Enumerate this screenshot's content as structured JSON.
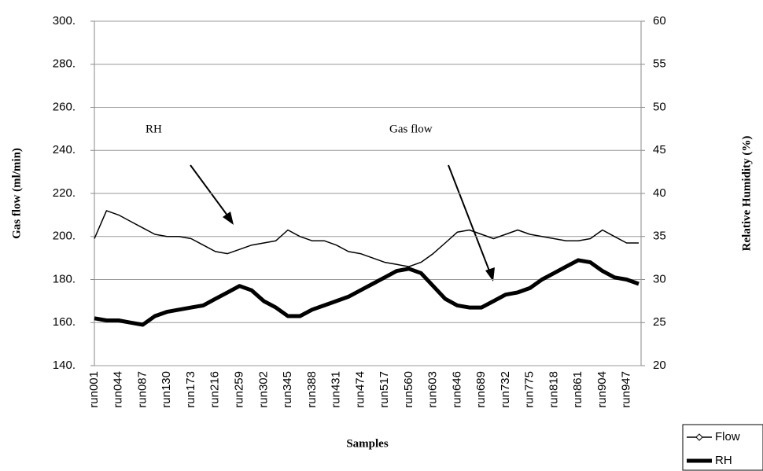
{
  "chart_data": {
    "type": "line",
    "y_label": "Gas flow (ml/min)",
    "y2_label": "Relative Humidity (%)",
    "x_label": "Samples",
    "categories": [
      "run001",
      null,
      "run044",
      null,
      "run087",
      null,
      "run130",
      null,
      "run173",
      null,
      "run216",
      null,
      "run259",
      null,
      "run302",
      null,
      "run345",
      null,
      "run388",
      null,
      "run431",
      null,
      "run474",
      null,
      "run517",
      null,
      "run560",
      null,
      "run603",
      null,
      "run646",
      null,
      "run689",
      null,
      "run732",
      null,
      "run775",
      null,
      "run818",
      null,
      "run861",
      null,
      "run904",
      null,
      "run947",
      null
    ],
    "series": [
      {
        "name": "Flow",
        "color": "#000000",
        "axis": "y",
        "values": [
          199,
          212,
          210,
          207,
          204,
          201,
          200,
          200,
          199,
          196,
          193,
          192,
          194,
          196,
          197,
          198,
          203,
          200,
          198,
          198,
          196,
          193,
          192,
          190,
          188,
          187,
          186,
          188,
          192,
          197,
          202,
          203,
          201,
          199,
          201,
          203,
          201,
          200,
          199,
          198,
          198,
          199,
          203,
          200,
          197,
          197
        ]
      },
      {
        "name": "RH",
        "color": "#000000",
        "axis": "y2",
        "values": [
          25.5,
          25.25,
          25.25,
          25,
          24.75,
          25.75,
          26.25,
          26.5,
          26.75,
          27,
          27.75,
          28.5,
          29.25,
          28.75,
          27.5,
          26.75,
          25.75,
          25.75,
          26.5,
          27,
          27.5,
          28,
          28.75,
          29.5,
          30.25,
          31,
          31.25,
          30.75,
          29.25,
          27.75,
          27,
          26.75,
          26.75,
          27.5,
          28.25,
          28.5,
          29,
          30,
          30.75,
          31.5,
          32.25,
          32,
          31,
          30.25,
          30,
          29.5
        ]
      }
    ],
    "ylim": [
      140,
      300
    ],
    "yticks": [
      {
        "value": 140,
        "label": "140."
      },
      {
        "value": 160,
        "label": "160."
      },
      {
        "value": 180,
        "label": "180."
      },
      {
        "value": 200,
        "label": "200."
      },
      {
        "value": 220,
        "label": "220."
      },
      {
        "value": 240,
        "label": "240."
      },
      {
        "value": 260,
        "label": "260."
      },
      {
        "value": 280,
        "label": "280."
      },
      {
        "value": 300,
        "label": "300."
      }
    ],
    "y2lim": [
      20,
      60
    ],
    "y2ticks": [
      20,
      25,
      30,
      35,
      40,
      45,
      50,
      55,
      60
    ],
    "grid": true,
    "annotations": [
      "RH",
      "Gas flow"
    ]
  }
}
